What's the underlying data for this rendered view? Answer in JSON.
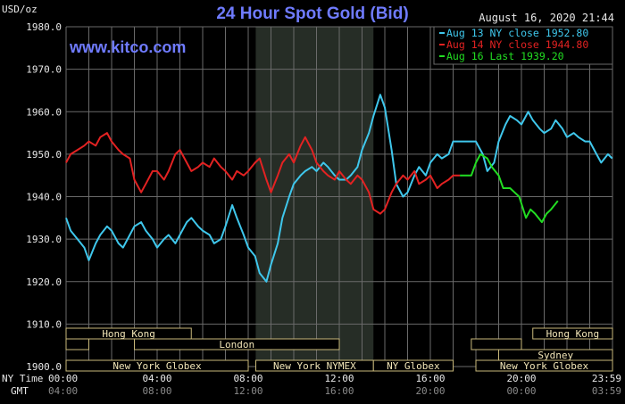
{
  "header": {
    "title": "24 Hour Spot Gold (Bid)",
    "unit": "USD/oz",
    "timestamp": "August 16, 2020 21:44",
    "watermark": "www.kitco.com"
  },
  "colors": {
    "background": "#000000",
    "grid": "#6a6a6a",
    "title": "#6f7bff",
    "aug13": "#3fc7ec",
    "aug14": "#e32222",
    "aug16": "#22dd22",
    "session_band": "#262d26",
    "session_text": "#f2e6b8",
    "session_border": "#c8b87a"
  },
  "sessions": {
    "rows": [
      {
        "label": "Hong Kong",
        "start": "00:00",
        "end": "05:30"
      },
      {
        "label": "Hong Kong",
        "start": "20:30",
        "end": "24:00"
      },
      {
        "label": "London",
        "start": "03:00",
        "end": "12:00"
      },
      {
        "label": "Sydney",
        "start": "19:00",
        "end": "24:00"
      },
      {
        "label": "New York Globex",
        "start": "00:00",
        "end": "08:00"
      },
      {
        "label": "New York NYMEX",
        "start": "08:20",
        "end": "13:30"
      },
      {
        "label": "NY Globex",
        "start": "13:30",
        "end": "17:00"
      },
      {
        "label": "New York Globex",
        "start": "18:00",
        "end": "24:00"
      }
    ]
  },
  "axis_labels": {
    "ny_time": "NY Time",
    "gmt": "GMT"
  },
  "chart_data": {
    "type": "line",
    "title": "24 Hour Spot Gold (Bid)",
    "ylabel": "USD/oz",
    "ylim": [
      1900,
      1980
    ],
    "xlim": [
      0,
      24
    ],
    "yticks": [
      "1980.0",
      "1970.0",
      "1960.0",
      "1950.0",
      "1940.0",
      "1930.0",
      "1920.0",
      "1910.0",
      "1900.0"
    ],
    "xticks_ny": [
      "00:00",
      "04:00",
      "08:00",
      "12:00",
      "16:00",
      "20:00",
      "23:59"
    ],
    "xticks_gmt": [
      "04:00",
      "08:00",
      "12:00",
      "16:00",
      "20:00",
      "00:00",
      "03:59"
    ],
    "grid": true,
    "legend_position": "top-right",
    "series": [
      {
        "name": "Aug 13 NY close",
        "legend_value": "1952.80",
        "x": [
          0,
          0.2,
          0.5,
          0.8,
          1.0,
          1.3,
          1.5,
          1.8,
          2.0,
          2.3,
          2.5,
          2.8,
          3.0,
          3.3,
          3.5,
          3.8,
          4.0,
          4.3,
          4.5,
          4.8,
          5.0,
          5.3,
          5.5,
          5.8,
          6.0,
          6.3,
          6.5,
          6.8,
          7.0,
          7.3,
          7.5,
          7.8,
          8.0,
          8.3,
          8.5,
          8.8,
          9.0,
          9.3,
          9.5,
          9.8,
          10.0,
          10.3,
          10.5,
          10.8,
          11.0,
          11.3,
          11.5,
          11.8,
          12.0,
          12.3,
          12.5,
          12.8,
          13.0,
          13.3,
          13.5,
          13.8,
          14.0,
          14.3,
          14.5,
          14.8,
          15.0,
          15.3,
          15.5,
          15.8,
          16.0,
          16.3,
          16.5,
          16.8,
          17.0,
          17.3,
          17.5,
          17.8,
          18.0,
          18.3,
          18.5,
          18.8,
          19.0,
          19.3,
          19.5,
          19.8,
          20.0,
          20.3,
          20.5,
          20.8,
          21.0,
          21.3,
          21.5,
          21.8,
          22.0,
          22.3,
          22.5,
          22.8,
          23.0,
          23.3,
          23.5,
          23.8,
          23.99
        ],
        "values": [
          1935,
          1932,
          1930,
          1928,
          1925,
          1929,
          1931,
          1933,
          1932,
          1929,
          1928,
          1931,
          1933,
          1934,
          1932,
          1930,
          1928,
          1930,
          1931,
          1929,
          1931,
          1934,
          1935,
          1933,
          1932,
          1931,
          1929,
          1930,
          1933,
          1938,
          1935,
          1931,
          1928,
          1926,
          1922,
          1920,
          1924,
          1929,
          1935,
          1940,
          1943,
          1945,
          1946,
          1947,
          1946,
          1948,
          1947,
          1945,
          1944,
          1944,
          1945,
          1947,
          1951,
          1955,
          1959,
          1964,
          1961,
          1951,
          1943,
          1940,
          1941,
          1945,
          1947,
          1945,
          1948,
          1950,
          1949,
          1950,
          1953,
          1953,
          1953,
          1953,
          1953,
          1950,
          1946,
          1948,
          1953,
          1957,
          1959,
          1958,
          1957,
          1960,
          1958,
          1956,
          1955,
          1956,
          1958,
          1956,
          1954,
          1955,
          1954,
          1953,
          1953,
          1950,
          1948,
          1950,
          1949
        ]
      },
      {
        "name": "Aug 14 NY close",
        "legend_value": "1944.80",
        "x": [
          0,
          0.2,
          0.5,
          0.8,
          1.0,
          1.3,
          1.5,
          1.8,
          2.0,
          2.3,
          2.5,
          2.8,
          3.0,
          3.3,
          3.5,
          3.8,
          4.0,
          4.3,
          4.5,
          4.8,
          5.0,
          5.3,
          5.5,
          5.8,
          6.0,
          6.3,
          6.5,
          6.8,
          7.0,
          7.3,
          7.5,
          7.8,
          8.0,
          8.3,
          8.5,
          8.8,
          9.0,
          9.3,
          9.5,
          9.8,
          10.0,
          10.3,
          10.5,
          10.8,
          11.0,
          11.3,
          11.5,
          11.8,
          12.0,
          12.3,
          12.5,
          12.8,
          13.0,
          13.3,
          13.5,
          13.8,
          14.0,
          14.3,
          14.5,
          14.8,
          15.0,
          15.3,
          15.5,
          15.8,
          16.0,
          16.3,
          16.5,
          16.8,
          17.0,
          17.3
        ],
        "values": [
          1948,
          1950,
          1951,
          1952,
          1953,
          1952,
          1954,
          1955,
          1953,
          1951,
          1950,
          1949,
          1944,
          1941,
          1943,
          1946,
          1946,
          1944,
          1946,
          1950,
          1951,
          1948,
          1946,
          1947,
          1948,
          1947,
          1949,
          1947,
          1946,
          1944,
          1946,
          1945,
          1946,
          1948,
          1949,
          1944,
          1941,
          1945,
          1948,
          1950,
          1948,
          1952,
          1954,
          1951,
          1948,
          1946,
          1945,
          1944,
          1946,
          1944,
          1943,
          1945,
          1944,
          1941,
          1937,
          1936,
          1937,
          1941,
          1943,
          1945,
          1944,
          1946,
          1943,
          1944,
          1945,
          1942,
          1943,
          1944,
          1945,
          1945
        ]
      },
      {
        "name": "Aug 16 Last",
        "legend_value": "1939.20",
        "x": [
          17.3,
          17.5,
          17.8,
          18.0,
          18.2,
          18.5,
          18.7,
          19.0,
          19.2,
          19.5,
          19.7,
          19.9,
          20.2,
          20.4,
          20.6,
          20.9,
          21.1,
          21.3,
          21.6
        ],
        "values": [
          1945,
          1945,
          1945,
          1948,
          1950,
          1949,
          1947,
          1945,
          1942,
          1942,
          1941,
          1940,
          1935,
          1937,
          1936,
          1934,
          1936,
          1937,
          1939
        ]
      }
    ]
  }
}
